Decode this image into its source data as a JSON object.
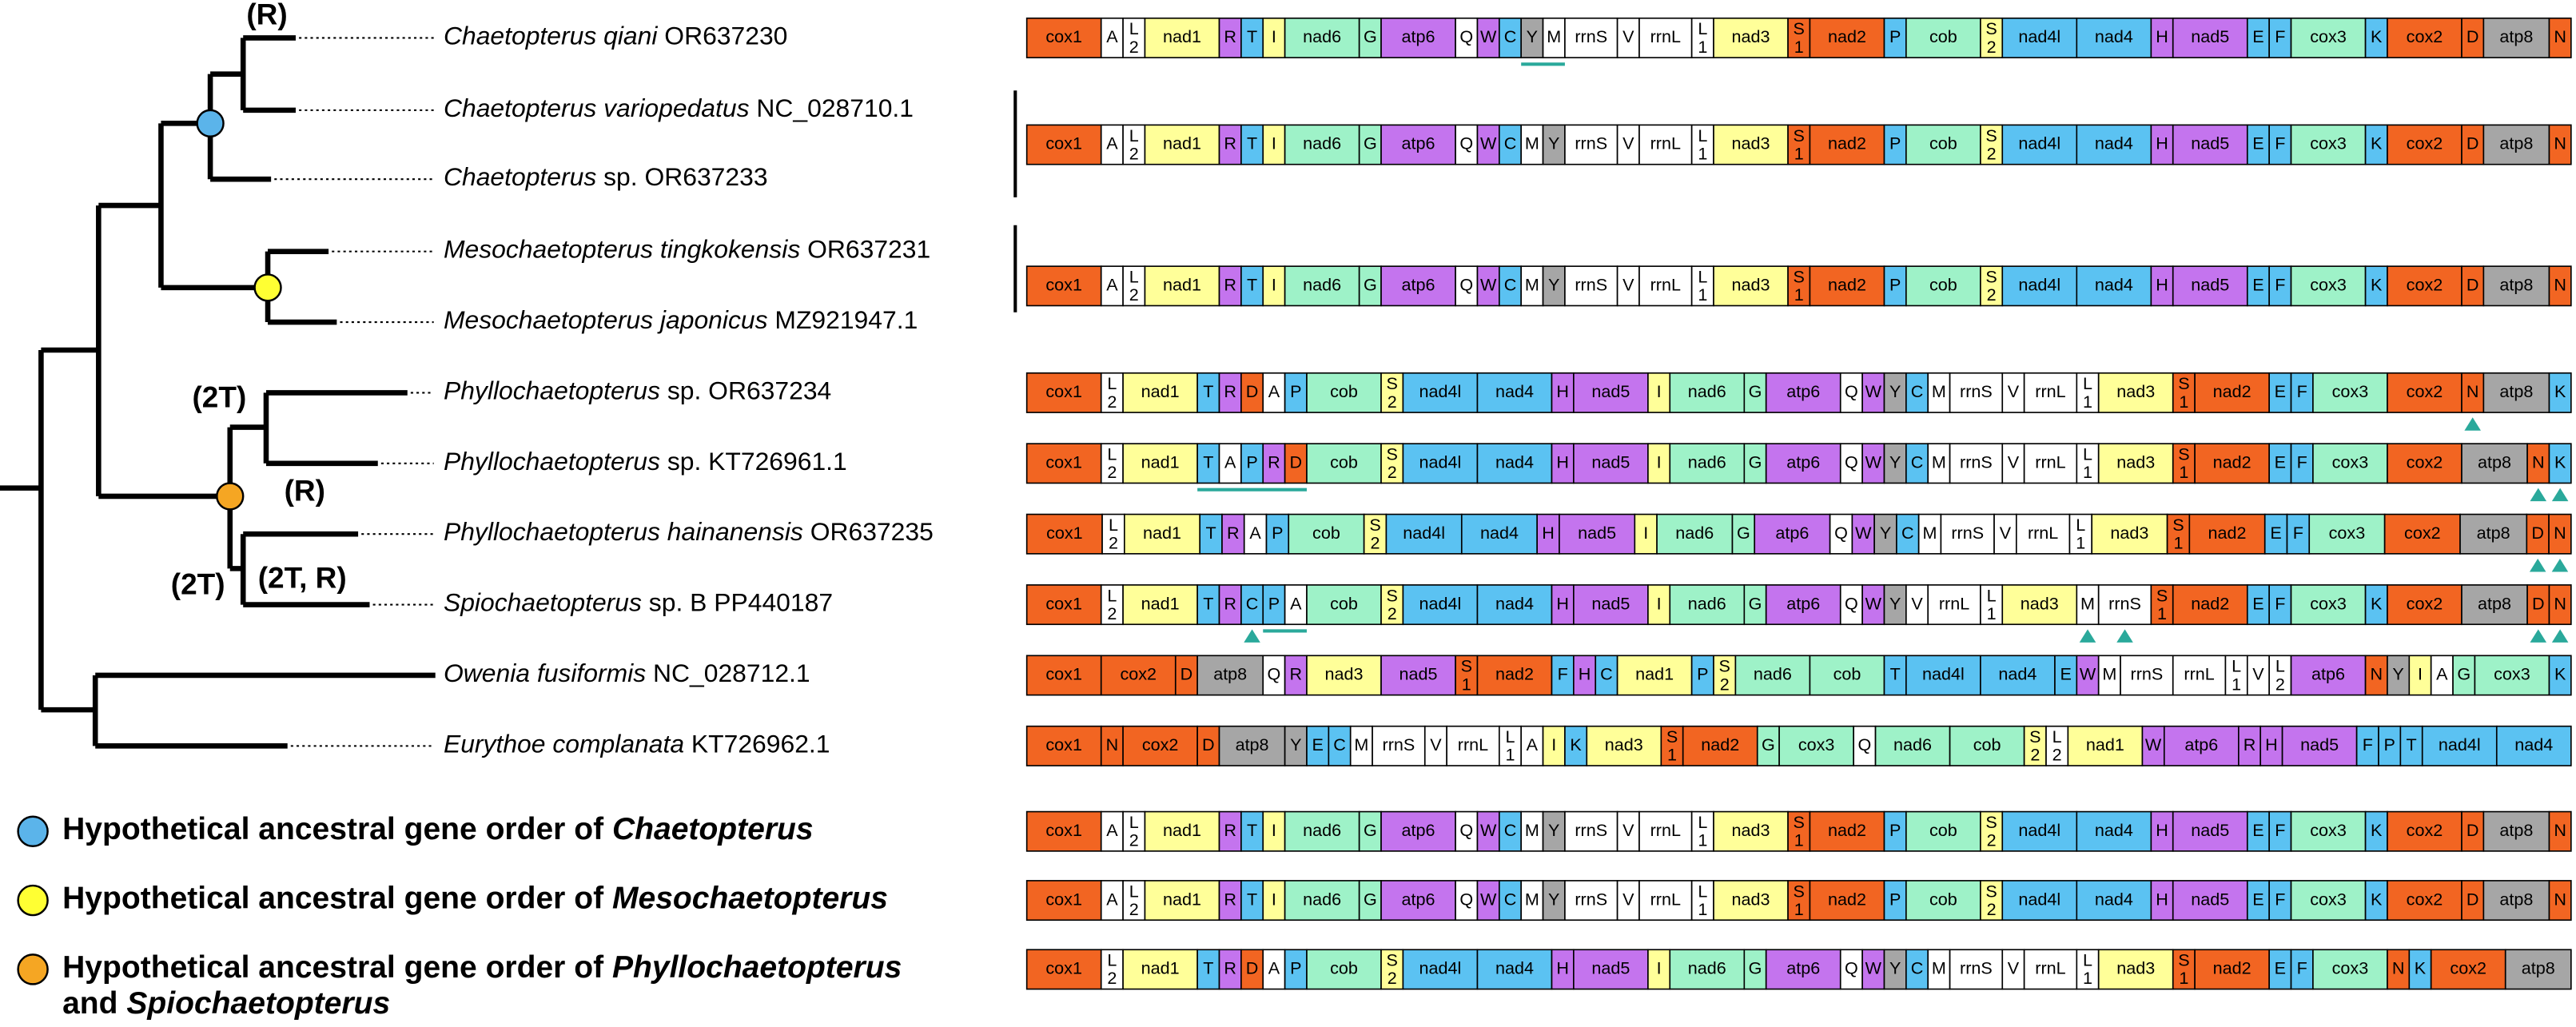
{
  "taxa": [
    {
      "italic": "Chaetopterus qiani",
      "rest": "OR637230"
    },
    {
      "italic": "Chaetopterus variopedatus",
      "rest": "NC_028710.1"
    },
    {
      "italic": "Chaetopterus",
      "rest": "sp. OR637233"
    },
    {
      "italic": "Mesochaetopterus tingkokensis",
      "rest": "OR637231"
    },
    {
      "italic": "Mesochaetopterus japonicus",
      "rest": "MZ921947.1"
    },
    {
      "italic": "Phyllochaetopterus",
      "rest": "sp. OR637234"
    },
    {
      "italic": "Phyllochaetopterus",
      "rest": "sp. KT726961.1"
    },
    {
      "italic": "Phyllochaetopterus hainanensis",
      "rest": "OR637235"
    },
    {
      "italic": "Spiochaetopterus",
      "rest": "sp. B PP440187"
    },
    {
      "italic": "Owenia fusiformis",
      "rest": "NC_028712.1"
    },
    {
      "italic": "Eurythoe complanata",
      "rest": "KT726962.1"
    }
  ],
  "tree_labels": [
    "(R)",
    "(2T)",
    "(R)",
    "(2T)",
    "(2T, R)"
  ],
  "gene_orders": [
    [
      "cox1",
      "A",
      "L2",
      "nad1",
      "R",
      "T",
      "I",
      "nad6",
      "G",
      "atp6",
      "Q",
      "W",
      "C",
      "Y",
      "M",
      "rrnS",
      "V",
      "rrnL",
      "L1",
      "nad3",
      "S1",
      "nad2",
      "P",
      "cob",
      "S2",
      "nad4l",
      "nad4",
      "H",
      "nad5",
      "E",
      "F",
      "cox3",
      "K",
      "cox2",
      "D",
      "atp8",
      "N"
    ],
    [
      "cox1",
      "A",
      "L2",
      "nad1",
      "R",
      "T",
      "I",
      "nad6",
      "G",
      "atp6",
      "Q",
      "W",
      "C",
      "M",
      "Y",
      "rrnS",
      "V",
      "rrnL",
      "L1",
      "nad3",
      "S1",
      "nad2",
      "P",
      "cob",
      "S2",
      "nad4l",
      "nad4",
      "H",
      "nad5",
      "E",
      "F",
      "cox3",
      "K",
      "cox2",
      "D",
      "atp8",
      "N"
    ],
    [
      "cox1",
      "A",
      "L2",
      "nad1",
      "R",
      "T",
      "I",
      "nad6",
      "G",
      "atp6",
      "Q",
      "W",
      "C",
      "M",
      "Y",
      "rrnS",
      "V",
      "rrnL",
      "L1",
      "nad3",
      "S1",
      "nad2",
      "P",
      "cob",
      "S2",
      "nad4l",
      "nad4",
      "H",
      "nad5",
      "E",
      "F",
      "cox3",
      "K",
      "cox2",
      "D",
      "atp8",
      "N"
    ],
    [
      "cox1",
      "L2",
      "nad1",
      "T",
      "R",
      "D",
      "A",
      "P",
      "cob",
      "S2",
      "nad4l",
      "nad4",
      "H",
      "nad5",
      "I",
      "nad6",
      "G",
      "atp6",
      "Q",
      "W",
      "Y",
      "C",
      "M",
      "rrnS",
      "V",
      "rrnL",
      "L1",
      "nad3",
      "S1",
      "nad2",
      "E",
      "F",
      "cox3",
      "cox2",
      "N",
      "atp8",
      "K"
    ],
    [
      "cox1",
      "L2",
      "nad1",
      "T",
      "A",
      "P",
      "R",
      "D",
      "cob",
      "S2",
      "nad4l",
      "nad4",
      "H",
      "nad5",
      "I",
      "nad6",
      "G",
      "atp6",
      "Q",
      "W",
      "Y",
      "C",
      "M",
      "rrnS",
      "V",
      "rrnL",
      "L1",
      "nad3",
      "S1",
      "nad2",
      "E",
      "F",
      "cox3",
      "cox2",
      "atp8",
      "N",
      "K"
    ],
    [
      "cox1",
      "L2",
      "nad1",
      "T",
      "R",
      "A",
      "P",
      "cob",
      "S2",
      "nad4l",
      "nad4",
      "H",
      "nad5",
      "I",
      "nad6",
      "G",
      "atp6",
      "Q",
      "W",
      "Y",
      "C",
      "M",
      "rrnS",
      "V",
      "rrnL",
      "L1",
      "nad3",
      "S1",
      "nad2",
      "E",
      "F",
      "cox3",
      "cox2",
      "atp8",
      "D",
      "N"
    ],
    [
      "cox1",
      "L2",
      "nad1",
      "T",
      "R",
      "C",
      "P",
      "A",
      "cob",
      "S2",
      "nad4l",
      "nad4",
      "H",
      "nad5",
      "I",
      "nad6",
      "G",
      "atp6",
      "Q",
      "W",
      "Y",
      "V",
      "rrnL",
      "L1",
      "nad3",
      "M",
      "rrnS",
      "S1",
      "nad2",
      "E",
      "F",
      "cox3",
      "K",
      "cox2",
      "atp8",
      "D",
      "N"
    ],
    [
      "cox1",
      "cox2",
      "D",
      "atp8",
      "Q",
      "R",
      "nad3",
      "nad5",
      "S1",
      "nad2",
      "F",
      "H",
      "C",
      "nad1",
      "P",
      "S2",
      "nad6",
      "cob",
      "T",
      "nad4l",
      "nad4",
      "E",
      "W",
      "M",
      "rrnS",
      "rrnL",
      "L1",
      "V",
      "L2",
      "atp6",
      "N",
      "Y",
      "I",
      "A",
      "G",
      "cox3",
      "K"
    ],
    [
      "cox1",
      "N",
      "cox2",
      "D",
      "atp8",
      "Y",
      "E",
      "C",
      "M",
      "rrnS",
      "V",
      "rrnL",
      "L1",
      "A",
      "I",
      "K",
      "nad3",
      "S1",
      "nad2",
      "G",
      "cox3",
      "Q",
      "nad6",
      "cob",
      "S2",
      "L2",
      "nad1",
      "W",
      "atp6",
      "R",
      "H",
      "nad5",
      "F",
      "P",
      "T",
      "nad4l",
      "nad4"
    ],
    [
      "cox1",
      "A",
      "L2",
      "nad1",
      "R",
      "T",
      "I",
      "nad6",
      "G",
      "atp6",
      "Q",
      "W",
      "C",
      "M",
      "Y",
      "rrnS",
      "V",
      "rrnL",
      "L1",
      "nad3",
      "S1",
      "nad2",
      "P",
      "cob",
      "S2",
      "nad4l",
      "nad4",
      "H",
      "nad5",
      "E",
      "F",
      "cox3",
      "K",
      "cox2",
      "D",
      "atp8",
      "N"
    ],
    [
      "cox1",
      "A",
      "L2",
      "nad1",
      "R",
      "T",
      "I",
      "nad6",
      "G",
      "atp6",
      "Q",
      "W",
      "C",
      "M",
      "Y",
      "rrnS",
      "V",
      "rrnL",
      "L1",
      "nad3",
      "S1",
      "nad2",
      "P",
      "cob",
      "S2",
      "nad4l",
      "nad4",
      "H",
      "nad5",
      "E",
      "F",
      "cox3",
      "K",
      "cox2",
      "D",
      "atp8",
      "N"
    ],
    [
      "cox1",
      "L2",
      "nad1",
      "T",
      "R",
      "D",
      "A",
      "P",
      "cob",
      "S2",
      "nad4l",
      "nad4",
      "H",
      "nad5",
      "I",
      "nad6",
      "G",
      "atp6",
      "Q",
      "W",
      "Y",
      "C",
      "M",
      "rrnS",
      "V",
      "rrnL",
      "L1",
      "nad3",
      "S1",
      "nad2",
      "E",
      "F",
      "cox3",
      "N",
      "K",
      "cox2",
      "atp8"
    ]
  ],
  "gene_colors": {
    "cox1": "#f26522",
    "cox2": "#f26522",
    "cox3": "#9ef2c8",
    "nad1": "#ffff99",
    "nad2": "#f26522",
    "nad3": "#ffff99",
    "nad4": "#5bc2f2",
    "nad4l": "#5bc2f2",
    "nad5": "#c474ee",
    "nad6": "#9ef2c8",
    "atp6": "#c474ee",
    "atp8": "#a6a6a6",
    "cob": "#9ef2c8",
    "rrnS": "#ffffff",
    "rrnL": "#ffffff",
    "A": "#ffffff",
    "L1": "#ffffff",
    "L2": "#ffffff",
    "R": "#c474ee",
    "T": "#5bc2f2",
    "I": "#ffff99",
    "G": "#9ef2c8",
    "Q": "#ffffff",
    "W": "#c474ee",
    "C": "#5bc2f2",
    "Y": "#a6a6a6",
    "M": "#ffffff",
    "V": "#ffffff",
    "S1": "#f26522",
    "S2": "#ffff99",
    "P": "#5bc2f2",
    "H": "#c474ee",
    "E": "#5bc2f2",
    "F": "#5bc2f2",
    "K": "#5bc2f2",
    "D": "#f26522",
    "N": "#f26522"
  },
  "legend": [
    {
      "text": "Hypothetical ancestral gene order of",
      "italic": "Chaetopterus",
      "color": "#5bb4ea"
    },
    {
      "text": "Hypothetical ancestral gene order of",
      "italic": "Mesochaetopterus",
      "color": "#ffff33"
    },
    {
      "text": "Hypothetical ancestral gene order of",
      "italic": "Phyllochaetopterus",
      "text2": "and",
      "italic2": "Spiochaetopterus",
      "color": "#f5a623"
    }
  ]
}
